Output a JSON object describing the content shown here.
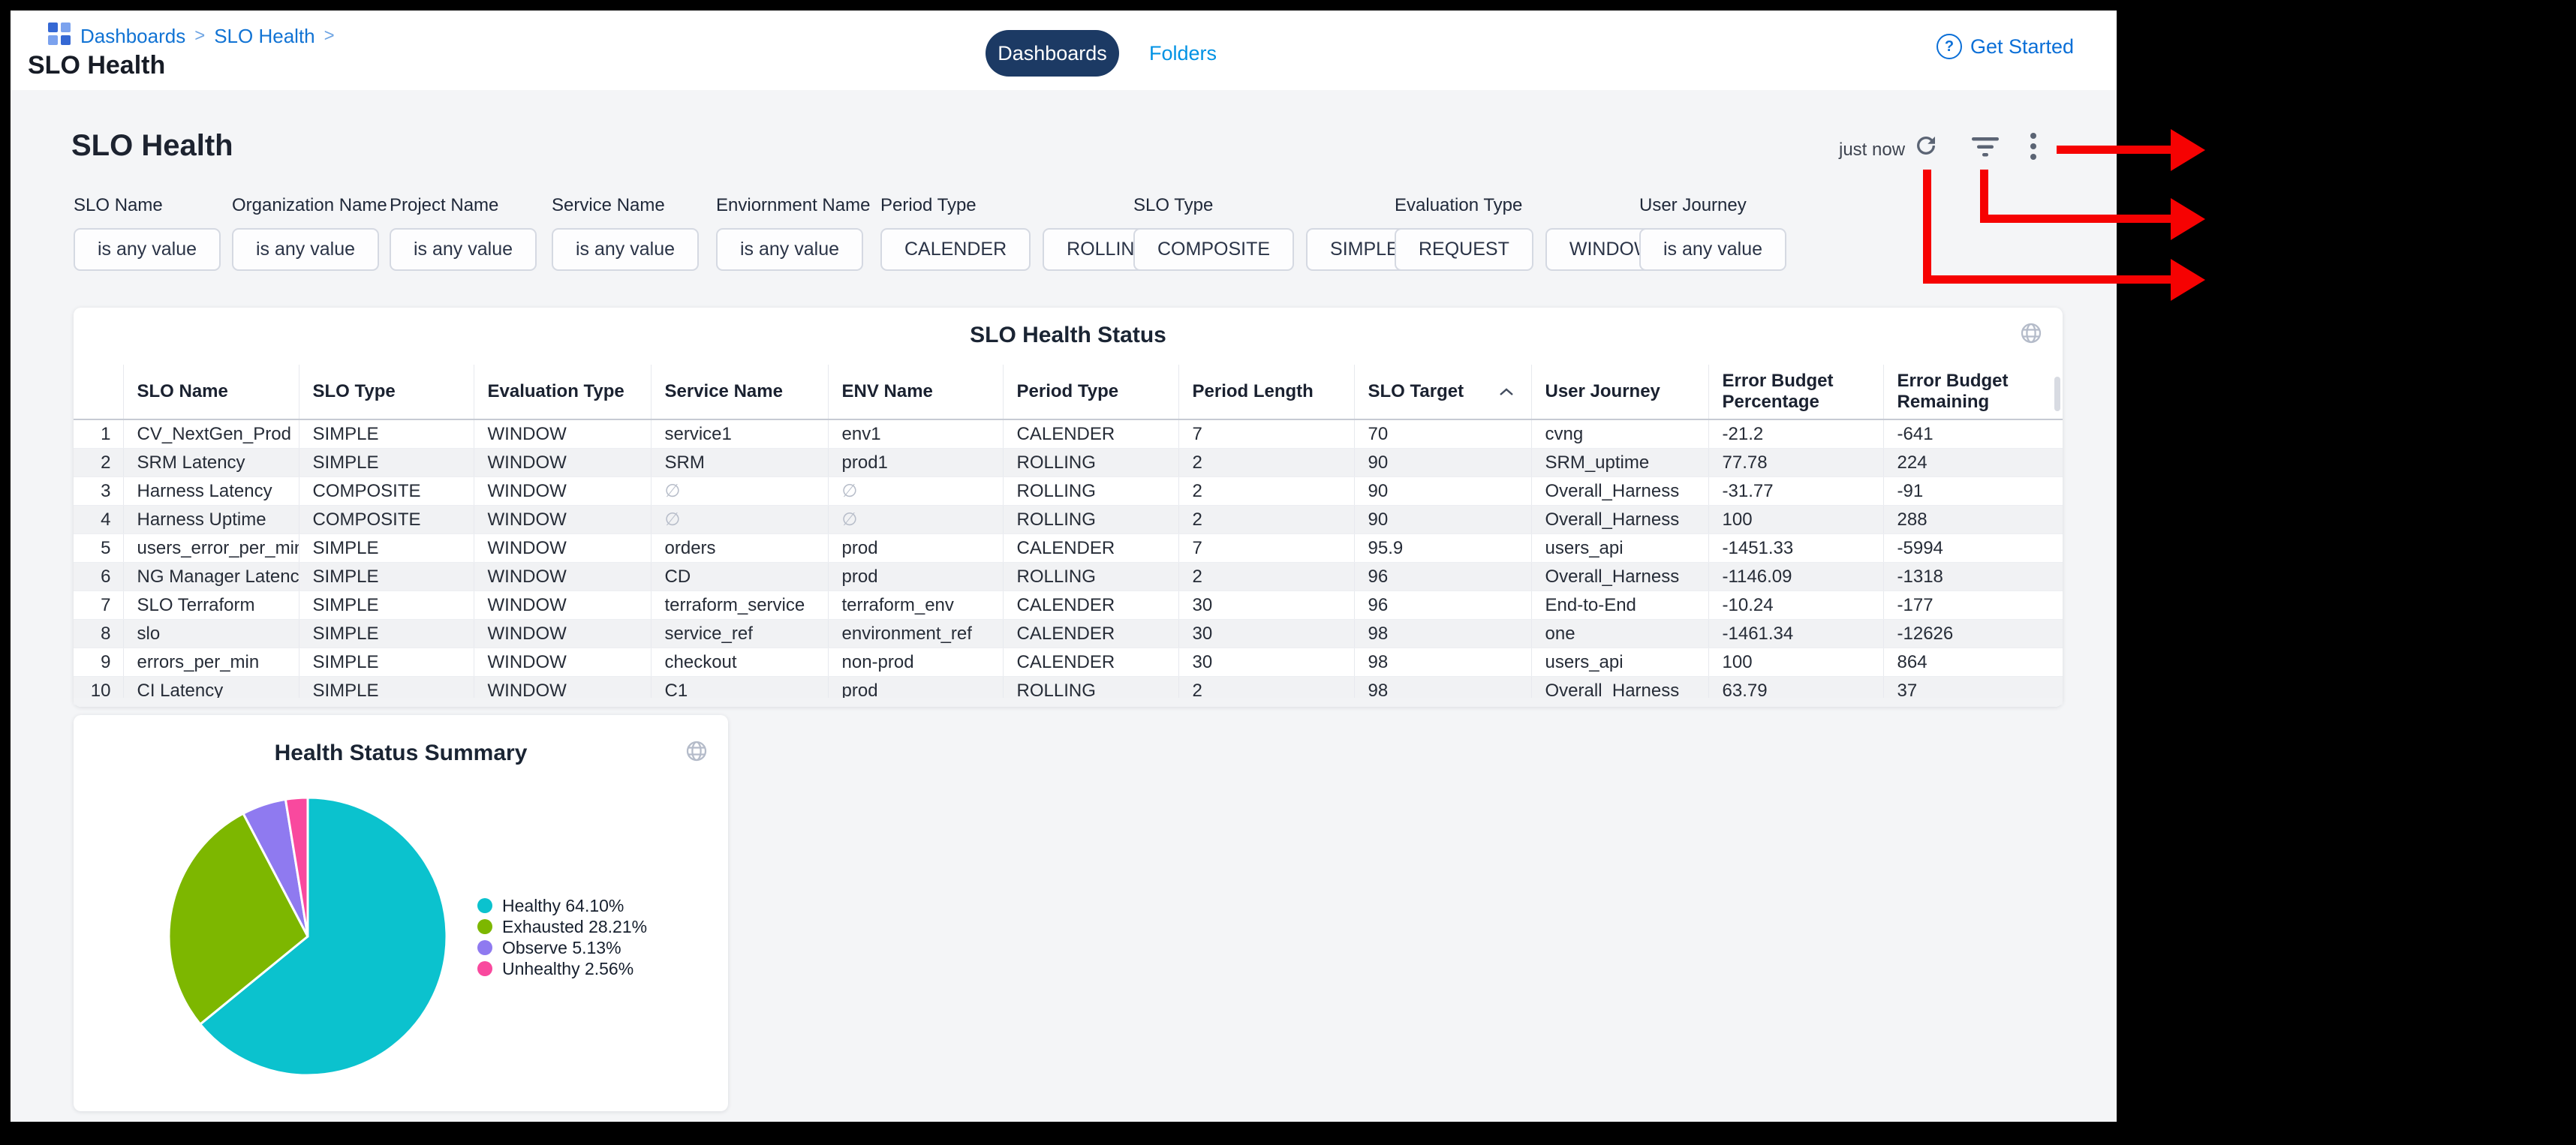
{
  "header": {
    "breadcrumb": {
      "items": [
        "Dashboards",
        "SLO Health"
      ],
      "separator": ">"
    },
    "page_title": "SLO Health",
    "tabs": [
      {
        "label": "Dashboards",
        "active": true
      },
      {
        "label": "Folders",
        "active": false
      }
    ],
    "get_started_label": "Get Started"
  },
  "dashboard": {
    "title": "SLO Health",
    "last_refreshed": "just now"
  },
  "filters": [
    {
      "label": "SLO Name",
      "options": [
        "is any value"
      ]
    },
    {
      "label": "Organization Name",
      "options": [
        "is any value"
      ]
    },
    {
      "label": "Project Name",
      "options": [
        "is any value"
      ]
    },
    {
      "label": "Service Name",
      "options": [
        "is any value"
      ]
    },
    {
      "label": "Enviornment Name",
      "options": [
        "is any value"
      ]
    },
    {
      "label": "Period Type",
      "options": [
        "CALENDER",
        "ROLLING"
      ]
    },
    {
      "label": "SLO Type",
      "options": [
        "COMPOSITE",
        "SIMPLE"
      ]
    },
    {
      "label": "Evaluation Type",
      "options": [
        "REQUEST",
        "WINDOW"
      ]
    },
    {
      "label": "User Journey",
      "options": [
        "is any value"
      ]
    }
  ],
  "table": {
    "title": "SLO Health Status",
    "columns": [
      [
        "SLO Name"
      ],
      [
        "SLO Type"
      ],
      [
        "Evaluation Type"
      ],
      [
        "Service Name"
      ],
      [
        "ENV Name"
      ],
      [
        "Period Type"
      ],
      [
        "Period Length"
      ],
      [
        "SLO Target"
      ],
      [
        "User Journey"
      ],
      [
        "Error Budget",
        "Percentage"
      ],
      [
        "Error Budget",
        "Remaining"
      ]
    ],
    "sort": {
      "column": "SLO Target",
      "direction": "asc"
    },
    "null_symbol": "∅",
    "rows": [
      [
        "CV_NextGen_Prod",
        "SIMPLE",
        "WINDOW",
        "service1",
        "env1",
        "CALENDER",
        "7",
        "70",
        "cvng",
        "-21.2",
        "-641"
      ],
      [
        "SRM Latency",
        "SIMPLE",
        "WINDOW",
        "SRM",
        "prod1",
        "ROLLING",
        "2",
        "90",
        "SRM_uptime",
        "77.78",
        "224"
      ],
      [
        "Harness Latency",
        "COMPOSITE",
        "WINDOW",
        "∅",
        "∅",
        "ROLLING",
        "2",
        "90",
        "Overall_Harness",
        "-31.77",
        "-91"
      ],
      [
        "Harness Uptime",
        "COMPOSITE",
        "WINDOW",
        "∅",
        "∅",
        "ROLLING",
        "2",
        "90",
        "Overall_Harness",
        "100",
        "288"
      ],
      [
        "users_error_per_min",
        "SIMPLE",
        "WINDOW",
        "orders",
        "prod",
        "CALENDER",
        "7",
        "95.9",
        "users_api",
        "-1451.33",
        "-5994"
      ],
      [
        "NG Manager Latency",
        "SIMPLE",
        "WINDOW",
        "CD",
        "prod",
        "ROLLING",
        "2",
        "96",
        "Overall_Harness",
        "-1146.09",
        "-1318"
      ],
      [
        "SLO Terraform",
        "SIMPLE",
        "WINDOW",
        "terraform_service",
        "terraform_env",
        "CALENDER",
        "30",
        "96",
        "End-to-End",
        "-10.24",
        "-177"
      ],
      [
        "slo",
        "SIMPLE",
        "WINDOW",
        "service_ref",
        "environment_ref",
        "CALENDER",
        "30",
        "98",
        "one",
        "-1461.34",
        "-12626"
      ],
      [
        "errors_per_min",
        "SIMPLE",
        "WINDOW",
        "checkout",
        "non-prod",
        "CALENDER",
        "30",
        "98",
        "users_api",
        "100",
        "864"
      ],
      [
        "CI Latency",
        "SIMPLE",
        "WINDOW",
        "C1",
        "prod",
        "ROLLING",
        "2",
        "98",
        "Overall_Harness",
        "63.79",
        "37"
      ]
    ]
  },
  "chart_data": {
    "type": "pie",
    "title": "Health Status Summary",
    "labels": [
      "Healthy",
      "Exhausted",
      "Observe",
      "Unhealthy"
    ],
    "values": [
      64.1,
      28.21,
      5.13,
      2.56
    ],
    "colors": [
      "#0bc2ce",
      "#7db700",
      "#8f7af0",
      "#f9499e"
    ],
    "legend": [
      "Healthy 64.10%",
      "Exhausted 28.21%",
      "Observe 5.13%",
      "Unhealthy 2.56%"
    ],
    "legend_position": "right"
  },
  "annotations": {
    "arrow_color": "#f60202",
    "arrows_point_from": [
      "more-options-icon",
      "filter-icon",
      "refresh-icon"
    ]
  }
}
